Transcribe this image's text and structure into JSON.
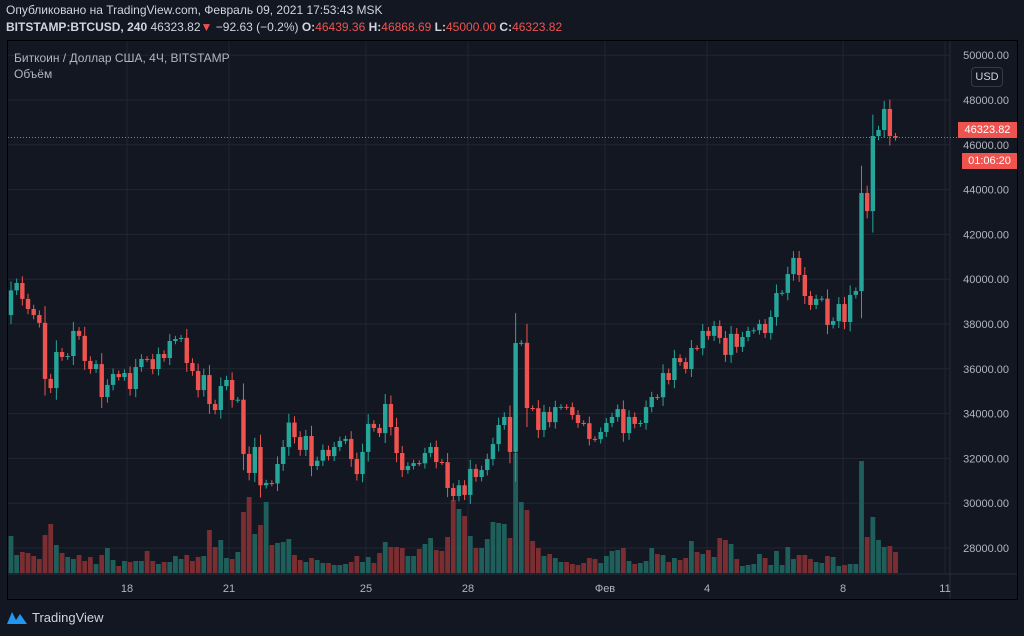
{
  "header": {
    "published": "Опубликовано на TradingView.com, Февраль 09, 2021 17:53:43 MSK",
    "symbol": "BITSTAMP:BTCUSD, 240",
    "last": "46323.82",
    "change_icon": "triangle-down-icon",
    "change": "−92.63 (−0.2%)",
    "o_label": "O:",
    "o": "46439.36",
    "h_label": "H:",
    "h": "46868.69",
    "l_label": "L:",
    "l": "45000.00",
    "c_label": "C:",
    "c": "46323.82"
  },
  "legend": {
    "title": "Биткоин / Доллар США, 4Ч, BITSTAMP",
    "volume": "Объём"
  },
  "price_axis": {
    "currency": "USD",
    "current_price": "46323.82",
    "countdown": "01:06:20"
  },
  "footer": {
    "brand": "TradingView"
  },
  "colors": {
    "up": "#26a69a",
    "down": "#ef5350",
    "up_volume": "#1f5f5b",
    "down_volume": "#7a2e31",
    "background": "#131722",
    "grid": "#222631",
    "brand": "#2196f3"
  },
  "chart_data": {
    "type": "candlestick",
    "interval": "4H",
    "ylim": [
      27000,
      50000
    ],
    "y_ticks": [
      "50000.00",
      "48000.00",
      "46000.00",
      "44000.00",
      "42000.00",
      "40000.00",
      "38000.00",
      "36000.00",
      "34000.00",
      "32000.00",
      "30000.00",
      "28000.00"
    ],
    "y_tick_values": [
      50000,
      48000,
      46000,
      44000,
      42000,
      40000,
      38000,
      36000,
      34000,
      32000,
      30000,
      28000
    ],
    "x_ticks": [
      "18",
      "21",
      "25",
      "28",
      "Фев",
      "4",
      "8",
      "11"
    ],
    "grid": true,
    "first_open": 38400,
    "close": [
      39500,
      39830,
      39120,
      38670,
      38400,
      38050,
      35550,
      35140,
      36750,
      36530,
      36570,
      37690,
      37470,
      36350,
      35990,
      36210,
      34740,
      35280,
      35770,
      35630,
      35810,
      35100,
      36080,
      36440,
      36430,
      35990,
      36660,
      36480,
      37240,
      37330,
      37380,
      36260,
      35900,
      35050,
      35720,
      34430,
      34160,
      35230,
      35500,
      34610,
      34620,
      32200,
      31350,
      32510,
      30800,
      30900,
      30880,
      31750,
      32510,
      33600,
      32950,
      32380,
      33000,
      31660,
      31900,
      32380,
      32100,
      32510,
      32780,
      32870,
      31970,
      31300,
      32290,
      33540,
      33360,
      33130,
      34430,
      33400,
      32240,
      31480,
      31660,
      31790,
      31780,
      32240,
      32510,
      31840,
      31830,
      30680,
      30320,
      30800,
      30370,
      31530,
      31170,
      31480,
      31970,
      32640,
      33490,
      33850,
      32290,
      37150,
      37160,
      34250,
      34240,
      33270,
      34070,
      33620,
      34290,
      34300,
      34290,
      33940,
      33580,
      33570,
      32870,
      32860,
      33180,
      33580,
      33850,
      34200,
      33130,
      33850,
      33540,
      33580,
      34290,
      34740,
      34730,
      35810,
      35500,
      36480,
      36300,
      35990,
      36930,
      36920,
      37690,
      37470,
      37910,
      37380,
      36620,
      37560,
      36980,
      37420,
      37690,
      37720,
      38000,
      37600,
      38310,
      39380,
      39390,
      40230,
      40950,
      40190,
      39250,
      38850,
      39120,
      39130,
      37960,
      38130,
      38890,
      38090,
      39300,
      39470,
      43850,
      43040,
      46390,
      46660,
      47600,
      46390,
      46323.82
    ],
    "volume": [
      37,
      18,
      21,
      20,
      17,
      14,
      38,
      49,
      28,
      20,
      16,
      14,
      18,
      12,
      16,
      9,
      18,
      25,
      13,
      7,
      12,
      11,
      12,
      12,
      22,
      12,
      9,
      11,
      11,
      17,
      14,
      18,
      12,
      16,
      17,
      43,
      26,
      33,
      15,
      14,
      21,
      61,
      76,
      39,
      48,
      71,
      28,
      30,
      31,
      34,
      18,
      13,
      11,
      15,
      13,
      10,
      10,
      8,
      8,
      9,
      11,
      17,
      11,
      16,
      10,
      20,
      31,
      26,
      26,
      25,
      17,
      17,
      24,
      29,
      35,
      23,
      22,
      36,
      73,
      64,
      57,
      37,
      25,
      25,
      34,
      51,
      50,
      49,
      35,
      120,
      71,
      63,
      32,
      25,
      17,
      19,
      15,
      11,
      11,
      9,
      8,
      10,
      15,
      14,
      10,
      17,
      22,
      23,
      25,
      12,
      9,
      10,
      12,
      25,
      19,
      18,
      11,
      15,
      13,
      15,
      32,
      21,
      19,
      23,
      16,
      35,
      33,
      29,
      14,
      7,
      8,
      9,
      19,
      15,
      8,
      22,
      8,
      26,
      14,
      18,
      18,
      14,
      11,
      10,
      17,
      16,
      7,
      8,
      9,
      9,
      112,
      36,
      56,
      33,
      26,
      27,
      21
    ]
  }
}
